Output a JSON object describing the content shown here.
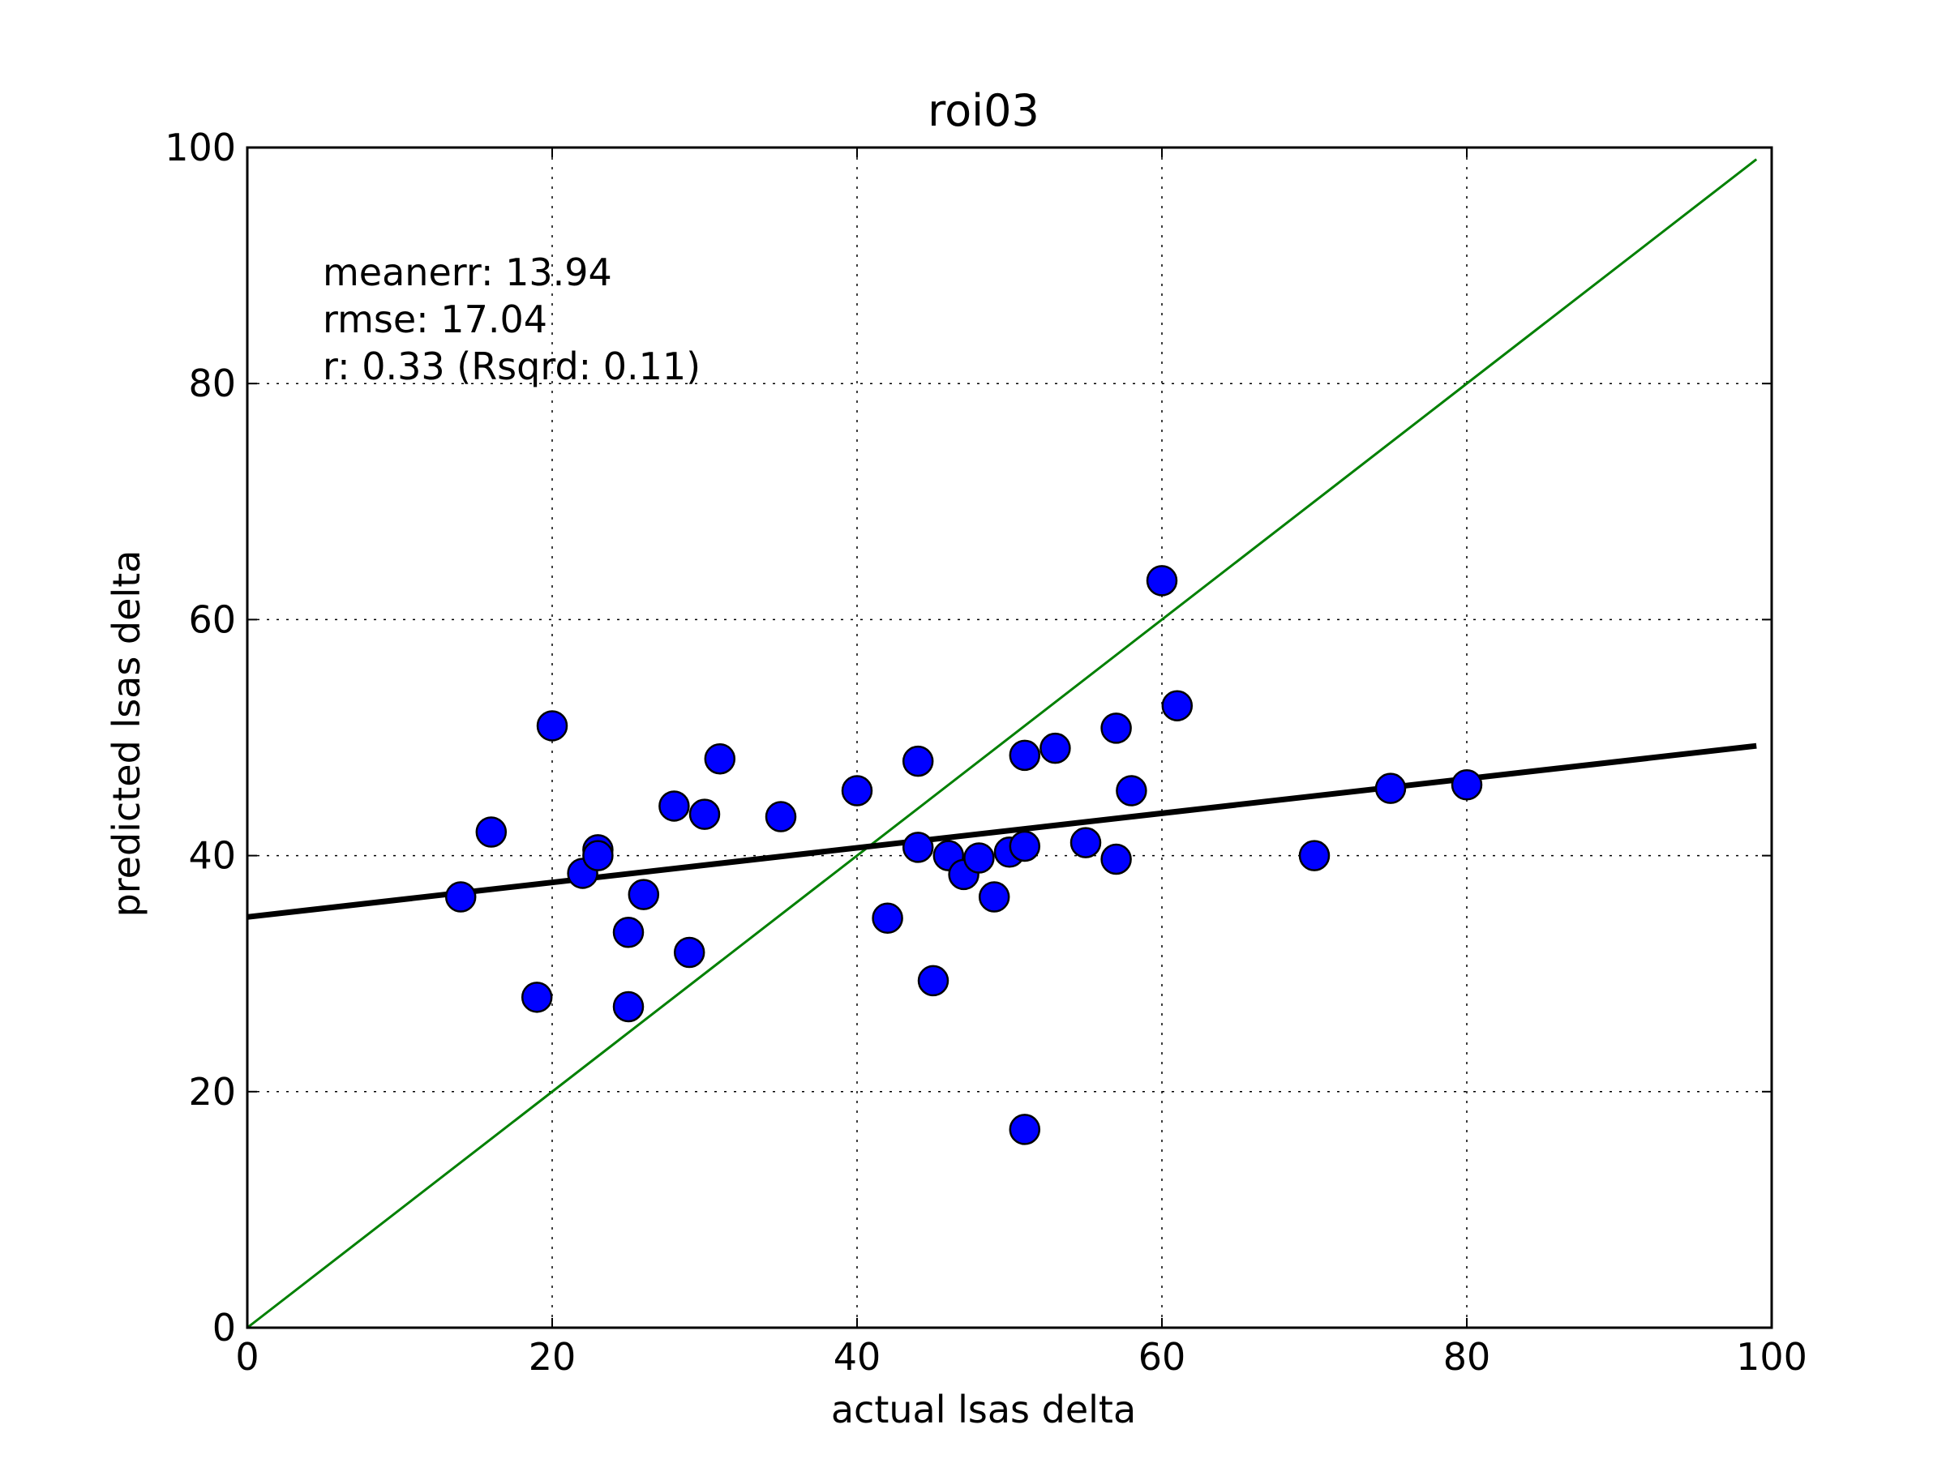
{
  "chart_data": {
    "type": "scatter",
    "title": "roi03",
    "xlabel": "actual lsas delta",
    "ylabel": "predicted lsas delta",
    "xlim": [
      0,
      100
    ],
    "ylim": [
      0,
      100
    ],
    "xticks": [
      0,
      20,
      40,
      60,
      80,
      100
    ],
    "yticks": [
      0,
      20,
      40,
      60,
      80,
      100
    ],
    "grid": true,
    "grid_style": "dotted",
    "annotations": [
      "meanerr: 13.94",
      "rmse: 17.04",
      "r: 0.33 (Rsqrd: 0.11)"
    ],
    "series": [
      {
        "marker": "circle",
        "color": "#0000ff",
        "points": [
          {
            "x": 14,
            "y": 36.5
          },
          {
            "x": 16,
            "y": 42
          },
          {
            "x": 19,
            "y": 28
          },
          {
            "x": 20,
            "y": 51
          },
          {
            "x": 22,
            "y": 38.5
          },
          {
            "x": 23,
            "y": 40.5
          },
          {
            "x": 23,
            "y": 40
          },
          {
            "x": 25,
            "y": 33.5
          },
          {
            "x": 25,
            "y": 27.2
          },
          {
            "x": 26,
            "y": 36.7
          },
          {
            "x": 28,
            "y": 44.2
          },
          {
            "x": 29,
            "y": 31.8
          },
          {
            "x": 30,
            "y": 43.5
          },
          {
            "x": 31,
            "y": 48.2
          },
          {
            "x": 35,
            "y": 43.3
          },
          {
            "x": 40,
            "y": 45.5
          },
          {
            "x": 42,
            "y": 34.7
          },
          {
            "x": 44,
            "y": 48
          },
          {
            "x": 44,
            "y": 40.7
          },
          {
            "x": 45,
            "y": 29.4
          },
          {
            "x": 46,
            "y": 40
          },
          {
            "x": 47,
            "y": 38.4
          },
          {
            "x": 48,
            "y": 39.8
          },
          {
            "x": 49,
            "y": 36.5
          },
          {
            "x": 50,
            "y": 40.3
          },
          {
            "x": 51,
            "y": 48.5
          },
          {
            "x": 51,
            "y": 40.8
          },
          {
            "x": 51,
            "y": 16.8
          },
          {
            "x": 53,
            "y": 49.1
          },
          {
            "x": 55,
            "y": 41.1
          },
          {
            "x": 57,
            "y": 50.8
          },
          {
            "x": 57,
            "y": 39.7
          },
          {
            "x": 58,
            "y": 45.5
          },
          {
            "x": 60,
            "y": 63.3
          },
          {
            "x": 61,
            "y": 52.7
          },
          {
            "x": 70,
            "y": 40
          },
          {
            "x": 75,
            "y": 45.7
          },
          {
            "x": 80,
            "y": 46
          }
        ]
      }
    ],
    "lines": [
      {
        "color": "#008000",
        "from": [
          0,
          0
        ],
        "to": [
          99,
          99
        ]
      },
      {
        "color": "#000000",
        "from": [
          0,
          34.8
        ],
        "to": [
          99,
          49.3
        ]
      }
    ]
  }
}
